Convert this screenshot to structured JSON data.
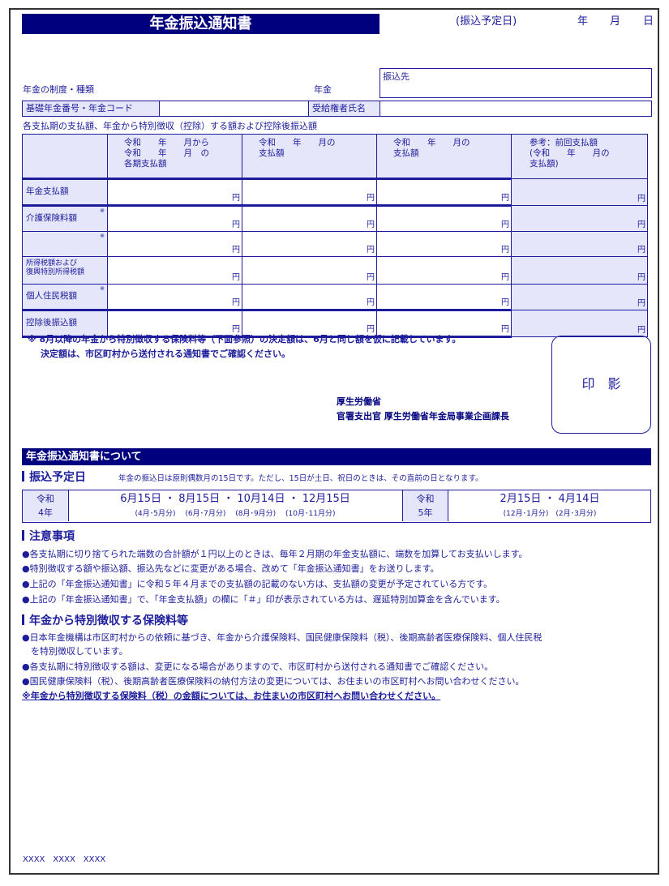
{
  "header": {
    "title": "年金振込通知書",
    "date_label": "(振込予定日)",
    "year": "年",
    "month": "月",
    "day": "日"
  },
  "info": {
    "system_label": "年金の制度・種類",
    "nenkin": "年金",
    "transfer_to": "振込先",
    "basic_number_label": "基礎年金番号・年金コード",
    "recipient_label": "受給権者氏名",
    "table_caption": "各支払期の支払額、年金から特別徴収（控除）する額および控除後振込額"
  },
  "table": {
    "headers": [
      [
        "令和　　年　　月から",
        "令和　　年　　月　の",
        "各期支払額"
      ],
      [
        "令和　　年　　月の",
        "支払額"
      ],
      [
        "令和　　年　　月の",
        "支払額"
      ],
      [
        "参考：前回支払額",
        "(令和　　年　　月の",
        "支払額)"
      ]
    ],
    "rows": [
      {
        "label": "年金支払額",
        "star": ""
      },
      {
        "label": "介護保険料額",
        "star": "※"
      },
      {
        "label": "",
        "star": "※"
      },
      {
        "label": "所得税額および\n復興特別所得税額",
        "star": ""
      },
      {
        "label": "個人住民税額",
        "star": "※"
      },
      {
        "label": "控除後振込額",
        "star": ""
      }
    ],
    "yen": "円"
  },
  "notes": {
    "line1": "※ 8月以降の年金から特別徴収する保険料等（下面参照）の決定額は、6月と同じ額を仮に記載しています。",
    "line2": "決定額は、市区町村から送付される通知書でご確認ください。"
  },
  "seal": "印　影",
  "issuer": {
    "line1": "厚生労働省",
    "line2": "官署支出官 厚生労働省年金局事業企画課長"
  },
  "about": {
    "title": "年金振込通知書について",
    "schedule_heading": "振込予定日",
    "schedule_note": "年金の振込日は原則偶数月の15日です。ただし、15日が土日、祝日のときは、その直前の日となります。",
    "r4_era": "令和",
    "r4_year": "4年",
    "r4_dates": "6月15日 ・ 8月15日 ・ 10月14日 ・ 12月15日",
    "r4_periods": "(4月･5月分)　 (6月･7月分)　 (8月･9月分)　 (10月･11月分)",
    "r5_era": "令和",
    "r5_year": "5年",
    "r5_dates": "2月15日 ・ 4月14日",
    "r5_periods": "(12月･1月分)　(2月･3月分)",
    "caution_heading": "注意事項",
    "cautions": [
      "●各支払期に切り捨てられた端数の合計額が１円以上のときは、毎年２月期の年金支払額に、端数を加算してお支払いします。",
      "●特別徴収する額や振込額、振込先などに変更がある場合、改めて「年金振込通知書」をお送りします。",
      "●上記の「年金振込通知書」に令和５年４月までの支払額の記載のない方は、支払額の変更が予定されている方です。",
      "●上記の「年金振込通知書」で、「年金支払額」の欄に「＃」印が表示されている方は、遅延特別加算金を含んでいます。"
    ],
    "insurance_heading": "年金から特別徴収する保険料等",
    "insurance": [
      "●日本年金機構は市区町村からの依頼に基づき、年金から介護保険料、国民健康保険料（税）、後期高齢者医療保険料、個人住民税",
      "　を特別徴収しています。",
      "●各支払期に特別徴収する額は、変更になる場合がありますので、市区町村から送付される通知書でご確認ください。",
      "●国民健康保険料（税）、後期高齢者医療保険料の納付方法の変更については、お住まいの市区町村へお問い合わせください。"
    ],
    "final_note": "※年金から特別徴収する保険料（税）の金額については、お住まいの市区町村へお問い合わせください。"
  },
  "footer": "XXXX　XXXX　XXXX"
}
